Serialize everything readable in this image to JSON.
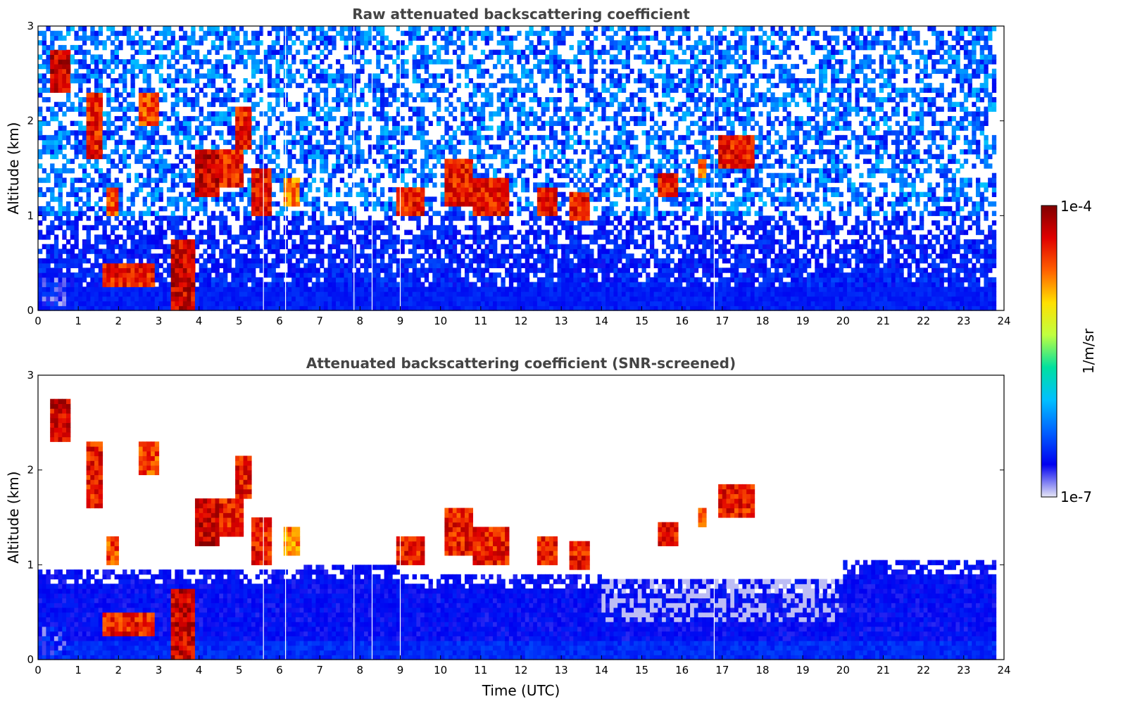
{
  "chart_data": [
    {
      "type": "heatmap",
      "title": "Raw attenuated backscattering coefficient",
      "xlabel": "",
      "ylabel": "Altitude (km)",
      "xlim": [
        0,
        24
      ],
      "ylim": [
        0,
        3
      ],
      "xticks": [
        "0",
        "1",
        "2",
        "3",
        "4",
        "5",
        "6",
        "7",
        "8",
        "9",
        "10",
        "11",
        "12",
        "13",
        "14",
        "15",
        "16",
        "17",
        "18",
        "19",
        "20",
        "21",
        "22",
        "23",
        "24"
      ],
      "yticks": [
        "0",
        "1",
        "2",
        "3"
      ],
      "cloud_layers": [
        {
          "t0": 0.15,
          "t1": 0.7,
          "z0": 0.05,
          "z1": 0.35,
          "level": 0.2
        },
        {
          "t0": 0.3,
          "t1": 0.8,
          "z0": 2.3,
          "z1": 2.75,
          "level": 1.0
        },
        {
          "t0": 1.2,
          "t1": 1.6,
          "z0": 1.6,
          "z1": 2.3,
          "level": 0.95
        },
        {
          "t0": 1.7,
          "t1": 2.05,
          "z0": 1.0,
          "z1": 1.3,
          "level": 0.9
        },
        {
          "t0": 1.6,
          "t1": 2.9,
          "z0": 0.25,
          "z1": 0.5,
          "level": 0.95
        },
        {
          "t0": 2.5,
          "t1": 2.95,
          "z0": 1.95,
          "z1": 2.3,
          "level": 0.9
        },
        {
          "t0": 3.3,
          "t1": 3.9,
          "z0": 0.0,
          "z1": 0.75,
          "level": 1.0
        },
        {
          "t0": 3.9,
          "t1": 4.5,
          "z0": 1.2,
          "z1": 1.7,
          "level": 1.0
        },
        {
          "t0": 4.5,
          "t1": 5.1,
          "z0": 1.3,
          "z1": 1.7,
          "level": 0.95
        },
        {
          "t0": 4.9,
          "t1": 5.3,
          "z0": 1.7,
          "z1": 2.15,
          "level": 0.95
        },
        {
          "t0": 5.3,
          "t1": 5.8,
          "z0": 1.0,
          "z1": 1.5,
          "level": 0.95
        },
        {
          "t0": 6.1,
          "t1": 6.5,
          "z0": 1.1,
          "z1": 1.4,
          "level": 0.85
        },
        {
          "t0": 8.9,
          "t1": 9.6,
          "z0": 1.0,
          "z1": 1.3,
          "level": 0.95
        },
        {
          "t0": 10.1,
          "t1": 10.8,
          "z0": 1.1,
          "z1": 1.6,
          "level": 0.95
        },
        {
          "t0": 10.8,
          "t1": 11.7,
          "z0": 1.0,
          "z1": 1.4,
          "level": 0.95
        },
        {
          "t0": 12.4,
          "t1": 12.9,
          "z0": 1.0,
          "z1": 1.3,
          "level": 0.95
        },
        {
          "t0": 13.2,
          "t1": 13.7,
          "z0": 0.95,
          "z1": 1.25,
          "level": 0.95
        },
        {
          "t0": 15.4,
          "t1": 15.9,
          "z0": 1.2,
          "z1": 1.45,
          "level": 0.95
        },
        {
          "t0": 16.45,
          "t1": 16.55,
          "z0": 1.4,
          "z1": 1.6,
          "level": 0.85
        },
        {
          "t0": 16.9,
          "t1": 17.8,
          "z0": 1.5,
          "z1": 1.85,
          "level": 0.95
        }
      ],
      "data_gaps_utc": [
        5.6,
        6.15,
        7.85,
        8.3,
        9.0,
        16.8
      ]
    },
    {
      "type": "heatmap",
      "title": "Attenuated backscattering coefficient (SNR-screened)",
      "xlabel": "Time (UTC)",
      "ylabel": "Altitude (km)",
      "xlim": [
        0,
        24
      ],
      "ylim": [
        0,
        3
      ],
      "xticks": [
        "0",
        "1",
        "2",
        "3",
        "4",
        "5",
        "6",
        "7",
        "8",
        "9",
        "10",
        "11",
        "12",
        "13",
        "14",
        "15",
        "16",
        "17",
        "18",
        "19",
        "20",
        "21",
        "22",
        "23",
        "24"
      ],
      "yticks": [
        "0",
        "1",
        "2",
        "3"
      ],
      "screened_top_km": [
        {
          "t0": 0.0,
          "t1": 6.5,
          "z": 0.95
        },
        {
          "t0": 6.5,
          "t1": 9.0,
          "z": 1.0
        },
        {
          "t0": 9.0,
          "t1": 14.0,
          "z": 0.9
        },
        {
          "t0": 14.0,
          "t1": 20.0,
          "z": 0.85
        },
        {
          "t0": 20.0,
          "t1": 23.8,
          "z": 1.05
        }
      ],
      "data_gaps_utc": [
        5.6,
        6.15,
        7.85,
        8.3,
        9.0,
        16.8
      ]
    }
  ],
  "colorbar": {
    "label": "1/m/sr",
    "max_label": "1e-4",
    "min_label": "1e-7",
    "stops": [
      "#e6e6f5",
      "#0000f0",
      "#0060ff",
      "#00c0ff",
      "#00e0a0",
      "#c0ff40",
      "#ffe000",
      "#ff6000",
      "#e00000",
      "#800000"
    ]
  }
}
